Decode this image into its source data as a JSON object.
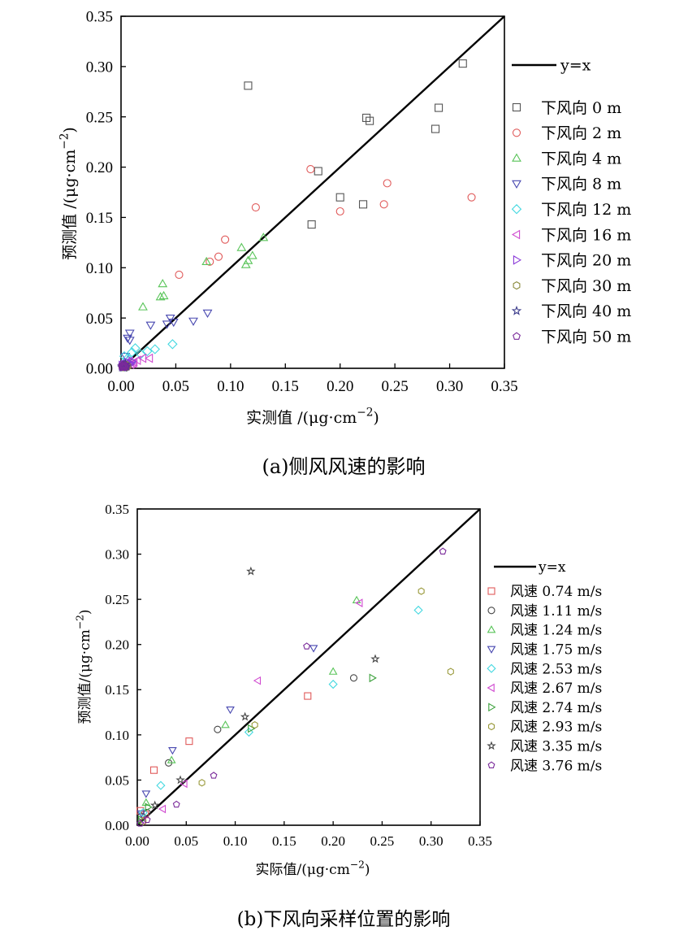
{
  "chart_data": [
    {
      "type": "scatter",
      "caption": "(a)侧风风速的影响",
      "xlabel": "实测值 /(μg·cm",
      "ylabel": "预测值 /(μg·cm",
      "unit_exp": "−2",
      "unit_close": ")",
      "xlim": [
        0,
        0.35
      ],
      "ylim": [
        0,
        0.35
      ],
      "ticks": [
        "0.00",
        "0.05",
        "0.10",
        "0.15",
        "0.20",
        "0.25",
        "0.30",
        "0.35"
      ],
      "reference_line": "y=x",
      "legend_position": "right",
      "series": [
        {
          "name": "下风向 0 m",
          "marker": "square",
          "color": "#555555",
          "points": [
            [
              0.116,
              0.281
            ],
            [
              0.18,
              0.196
            ],
            [
              0.174,
              0.143
            ],
            [
              0.2,
              0.17
            ],
            [
              0.221,
              0.163
            ],
            [
              0.224,
              0.249
            ],
            [
              0.227,
              0.246
            ],
            [
              0.287,
              0.238
            ],
            [
              0.29,
              0.259
            ],
            [
              0.312,
              0.303
            ]
          ]
        },
        {
          "name": "下风向 2 m",
          "marker": "circle",
          "color": "#e05a5a",
          "points": [
            [
              0.053,
              0.093
            ],
            [
              0.081,
              0.106
            ],
            [
              0.089,
              0.111
            ],
            [
              0.095,
              0.128
            ],
            [
              0.123,
              0.16
            ],
            [
              0.173,
              0.198
            ],
            [
              0.2,
              0.156
            ],
            [
              0.24,
              0.163
            ],
            [
              0.243,
              0.184
            ],
            [
              0.32,
              0.17
            ]
          ]
        },
        {
          "name": "下风向 4 m",
          "marker": "triangle-up",
          "color": "#58c458",
          "points": [
            [
              0.02,
              0.061
            ],
            [
              0.036,
              0.071
            ],
            [
              0.038,
              0.084
            ],
            [
              0.039,
              0.072
            ],
            [
              0.078,
              0.106
            ],
            [
              0.11,
              0.12
            ],
            [
              0.114,
              0.103
            ],
            [
              0.116,
              0.107
            ],
            [
              0.12,
              0.112
            ],
            [
              0.13,
              0.13
            ]
          ]
        },
        {
          "name": "下风向 8 m",
          "marker": "triangle-down",
          "color": "#4848b0",
          "points": [
            [
              0.008,
              0.035
            ],
            [
              0.008,
              0.028
            ],
            [
              0.027,
              0.043
            ],
            [
              0.042,
              0.044
            ],
            [
              0.045,
              0.05
            ],
            [
              0.048,
              0.046
            ],
            [
              0.066,
              0.047
            ],
            [
              0.079,
              0.055
            ],
            [
              0.004,
              0.012
            ],
            [
              0.006,
              0.03
            ]
          ]
        },
        {
          "name": "下风向 12 m",
          "marker": "diamond",
          "color": "#44d8e0",
          "points": [
            [
              0.003,
              0.012
            ],
            [
              0.006,
              0.01
            ],
            [
              0.01,
              0.016
            ],
            [
              0.013,
              0.02
            ],
            [
              0.018,
              0.014
            ],
            [
              0.024,
              0.017
            ],
            [
              0.031,
              0.019
            ],
            [
              0.047,
              0.024
            ],
            [
              0.002,
              0.004
            ],
            [
              0.009,
              0.006
            ]
          ]
        },
        {
          "name": "下风向 16 m",
          "marker": "triangle-left",
          "color": "#d04ad0",
          "points": [
            [
              0.003,
              0.003
            ],
            [
              0.006,
              0.005
            ],
            [
              0.009,
              0.004
            ],
            [
              0.012,
              0.006
            ],
            [
              0.015,
              0.008
            ],
            [
              0.02,
              0.01
            ],
            [
              0.026,
              0.01
            ],
            [
              0.004,
              0.002
            ],
            [
              0.008,
              0.007
            ],
            [
              0.011,
              0.005
            ]
          ]
        },
        {
          "name": "下风向 20 m",
          "marker": "triangle-right",
          "color": "#8a3ad8",
          "points": [
            [
              0.002,
              0.002
            ],
            [
              0.004,
              0.003
            ],
            [
              0.005,
              0.004
            ],
            [
              0.003,
              0.004
            ],
            [
              0.007,
              0.003
            ],
            [
              0.006,
              0.006
            ],
            [
              0.009,
              0.005
            ],
            [
              0.001,
              0.003
            ],
            [
              0.008,
              0.004
            ],
            [
              0.01,
              0.007
            ]
          ]
        },
        {
          "name": "下风向 30 m",
          "marker": "hexagon",
          "color": "#8a8a3c",
          "points": [
            [
              0.002,
              0.001
            ],
            [
              0.003,
              0.002
            ],
            [
              0.004,
              0.002
            ],
            [
              0.005,
              0.003
            ],
            [
              0.003,
              0.003
            ],
            [
              0.006,
              0.002
            ],
            [
              0.001,
              0.002
            ],
            [
              0.004,
              0.004
            ],
            [
              0.002,
              0.003
            ],
            [
              0.005,
              0.001
            ]
          ]
        },
        {
          "name": "下风向 40 m",
          "marker": "star",
          "color": "#3a3a8a",
          "points": [
            [
              0.001,
              0.001
            ],
            [
              0.002,
              0.002
            ],
            [
              0.003,
              0.001
            ],
            [
              0.002,
              0.003
            ],
            [
              0.004,
              0.002
            ],
            [
              0.003,
              0.003
            ],
            [
              0.001,
              0.002
            ],
            [
              0.005,
              0.002
            ],
            [
              0.004,
              0.004
            ],
            [
              0.002,
              0.001
            ]
          ]
        },
        {
          "name": "下风向 50 m",
          "marker": "pentagon",
          "color": "#7a2a9a",
          "points": [
            [
              0.001,
              0.001
            ],
            [
              0.002,
              0.001
            ],
            [
              0.002,
              0.002
            ],
            [
              0.003,
              0.002
            ],
            [
              0.001,
              0.003
            ],
            [
              0.003,
              0.001
            ],
            [
              0.004,
              0.003
            ],
            [
              0.002,
              0.004
            ],
            [
              0.005,
              0.002
            ],
            [
              0.001,
              0.002
            ]
          ]
        }
      ]
    },
    {
      "type": "scatter",
      "caption": "(b)下风向采样位置的影响",
      "xlabel": "实际值/(μg·cm",
      "ylabel": "预测值/(μg·cm",
      "unit_exp": "−2",
      "unit_close": ")",
      "xlim": [
        0,
        0.35
      ],
      "ylim": [
        0,
        0.35
      ],
      "ticks": [
        "0.00",
        "0.05",
        "0.10",
        "0.15",
        "0.20",
        "0.25",
        "0.30",
        "0.35"
      ],
      "reference_line": "y=x",
      "legend_position": "right",
      "series": [
        {
          "name": "风速 0.74 m/s",
          "marker": "square",
          "color": "#e05a5a",
          "points": [
            [
              0.017,
              0.061
            ],
            [
              0.053,
              0.093
            ],
            [
              0.174,
              0.143
            ],
            [
              0.003,
              0.016
            ],
            [
              0.008,
              0.012
            ]
          ]
        },
        {
          "name": "风速 1.11 m/s",
          "marker": "circle",
          "color": "#444444",
          "points": [
            [
              0.032,
              0.069
            ],
            [
              0.082,
              0.106
            ],
            [
              0.221,
              0.163
            ],
            [
              0.004,
              0.01
            ],
            [
              0.01,
              0.014
            ]
          ]
        },
        {
          "name": "风速 1.24 m/s",
          "marker": "triangle-up",
          "color": "#58c458",
          "points": [
            [
              0.035,
              0.072
            ],
            [
              0.09,
              0.111
            ],
            [
              0.2,
              0.17
            ],
            [
              0.224,
              0.249
            ],
            [
              0.009,
              0.025
            ]
          ]
        },
        {
          "name": "风速 1.75 m/s",
          "marker": "triangle-down",
          "color": "#4848b0",
          "points": [
            [
              0.036,
              0.083
            ],
            [
              0.095,
              0.128
            ],
            [
              0.18,
              0.196
            ],
            [
              0.009,
              0.035
            ],
            [
              0.004,
              0.013
            ]
          ]
        },
        {
          "name": "风速 2.53 m/s",
          "marker": "diamond",
          "color": "#44d8e0",
          "points": [
            [
              0.024,
              0.044
            ],
            [
              0.114,
              0.103
            ],
            [
              0.2,
              0.156
            ],
            [
              0.287,
              0.238
            ],
            [
              0.006,
              0.014
            ]
          ]
        },
        {
          "name": "风速 2.67 m/s",
          "marker": "triangle-left",
          "color": "#d04ad0",
          "points": [
            [
              0.026,
              0.018
            ],
            [
              0.048,
              0.046
            ],
            [
              0.123,
              0.16
            ],
            [
              0.227,
              0.246
            ],
            [
              0.006,
              0.005
            ]
          ]
        },
        {
          "name": "风速 2.74 m/s",
          "marker": "triangle-right",
          "color": "#3aa03a",
          "points": [
            [
              0.116,
              0.107
            ],
            [
              0.24,
              0.163
            ],
            [
              0.011,
              0.02
            ],
            [
              0.004,
              0.006
            ]
          ]
        },
        {
          "name": "风速 2.93 m/s",
          "marker": "hexagon",
          "color": "#9a9a3c",
          "points": [
            [
              0.066,
              0.047
            ],
            [
              0.12,
              0.111
            ],
            [
              0.29,
              0.259
            ],
            [
              0.32,
              0.17
            ],
            [
              0.006,
              0.004
            ]
          ]
        },
        {
          "name": "风速 3.35 m/s",
          "marker": "star",
          "color": "#444444",
          "points": [
            [
              0.116,
              0.281
            ],
            [
              0.11,
              0.12
            ],
            [
              0.243,
              0.184
            ],
            [
              0.018,
              0.022
            ],
            [
              0.044,
              0.05
            ]
          ]
        },
        {
          "name": "风速 3.76 m/s",
          "marker": "pentagon",
          "color": "#7a2a9a",
          "points": [
            [
              0.04,
              0.023
            ],
            [
              0.078,
              0.055
            ],
            [
              0.173,
              0.198
            ],
            [
              0.312,
              0.303
            ],
            [
              0.01,
              0.006
            ],
            [
              0.003,
              0.002
            ]
          ]
        }
      ]
    }
  ]
}
